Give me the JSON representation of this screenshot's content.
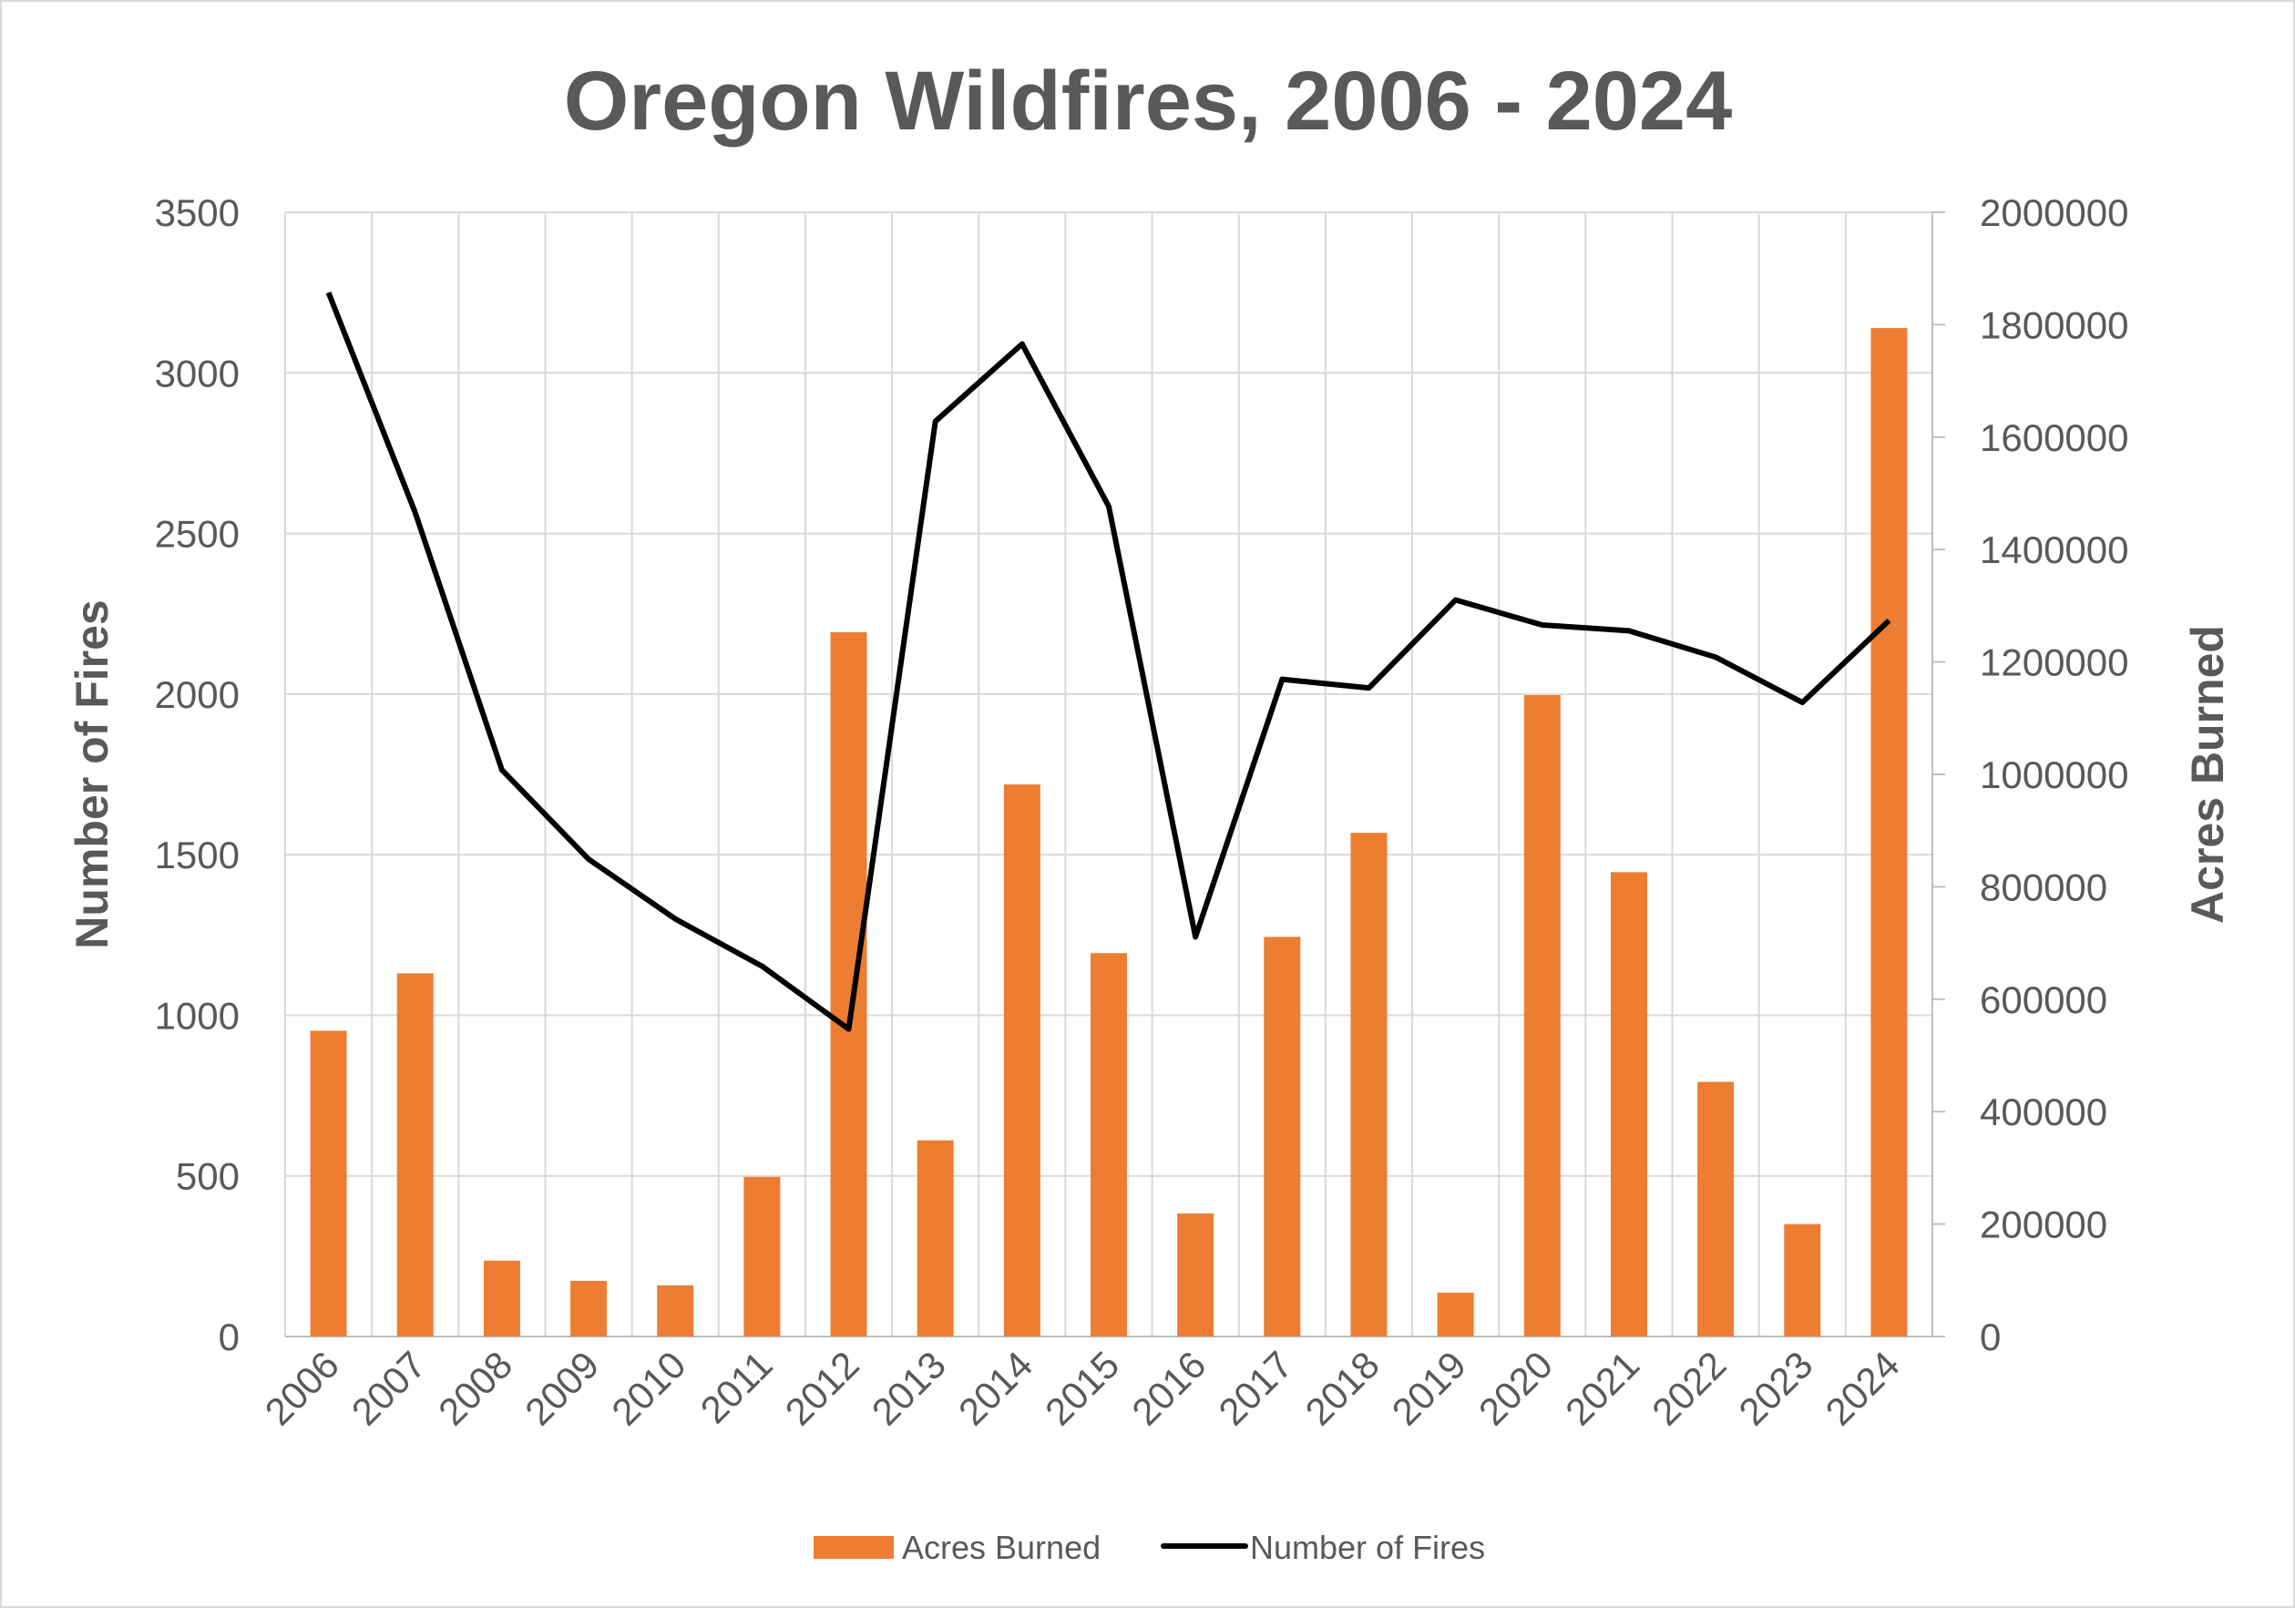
{
  "chart_data": {
    "type": "bar+line",
    "title": "Oregon Wildfires, 2006 - 2024",
    "xlabel": "",
    "ylabel_left": "Number of Fires",
    "ylabel_right": "Acres Burned",
    "ylim_left": [
      0,
      3500
    ],
    "ylim_right": [
      0,
      2000000
    ],
    "yticks_left": [
      "0",
      "500",
      "1000",
      "1500",
      "2000",
      "2500",
      "3000",
      "3500"
    ],
    "yticks_right": [
      "0",
      "200000",
      "400000",
      "600000",
      "800000",
      "1000000",
      "1200000",
      "1400000",
      "1600000",
      "1800000",
      "2000000"
    ],
    "grid": true,
    "legend_position": "bottom",
    "categories": [
      "2006",
      "2007",
      "2008",
      "2009",
      "2010",
      "2011",
      "2012",
      "2013",
      "2014",
      "2015",
      "2016",
      "2017",
      "2018",
      "2019",
      "2020",
      "2021",
      "2022",
      "2023",
      "2024"
    ],
    "series": [
      {
        "name": "Acres Burned",
        "type": "bar",
        "axis": "right",
        "color": "#ED7D31",
        "values": [
          544000,
          646000,
          135000,
          99000,
          91000,
          284000,
          1253000,
          349000,
          982000,
          682000,
          219000,
          711000,
          896000,
          78000,
          1141000,
          826000,
          453000,
          200000,
          1794000
        ]
      },
      {
        "name": "Number of Fires",
        "type": "line",
        "axis": "left",
        "color": "#000000",
        "values": [
          3250,
          2565,
          1764,
          1486,
          1300,
          1153,
          957,
          2849,
          3090,
          2584,
          1244,
          2046,
          2019,
          2293,
          2215,
          2197,
          2115,
          1974,
          2229
        ]
      }
    ]
  }
}
